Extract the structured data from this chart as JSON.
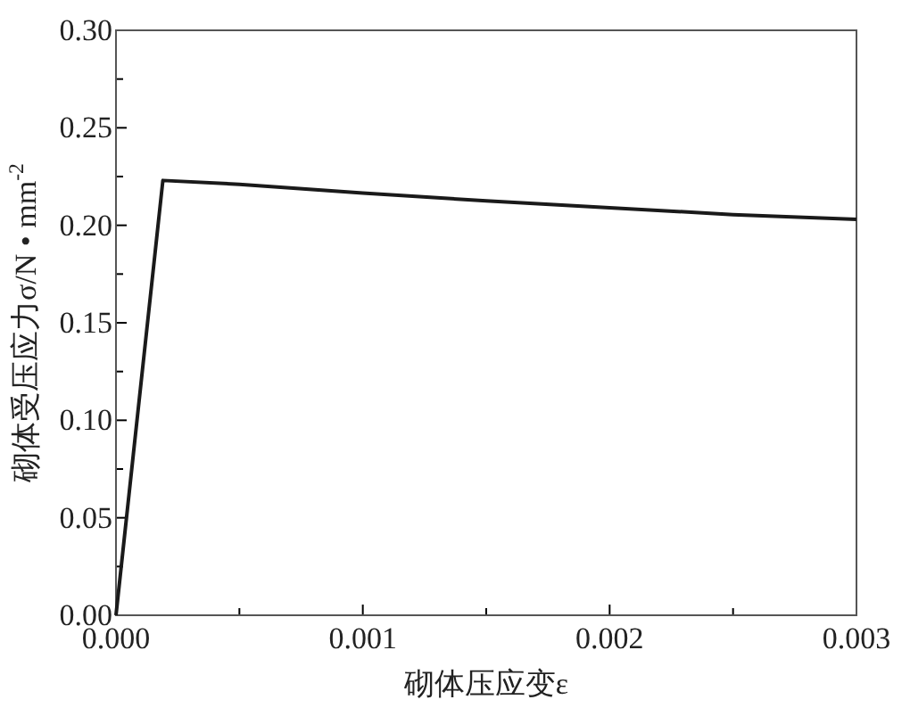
{
  "chart_data": {
    "type": "line",
    "xlabel": "砌体压应变ε",
    "ylabel": "砌体受压应力σ/N • mm$^{-2}$",
    "x": [
      0,
      0.00019,
      0.0005,
      0.001,
      0.0015,
      0.002,
      0.0025,
      0.003
    ],
    "series": [
      {
        "color": "#1a1a1a",
        "values": [
          0,
          0.223,
          0.221,
          0.2165,
          0.2125,
          0.209,
          0.2055,
          0.203
        ]
      }
    ],
    "xlim": [
      0,
      0.003
    ],
    "ylim": [
      0,
      0.3
    ],
    "xticks": [
      {
        "value": 0,
        "label": "0.000"
      },
      {
        "value": 0.0005,
        "label": null
      },
      {
        "value": 0.001,
        "label": "0.001"
      },
      {
        "value": 0.0015,
        "label": null
      },
      {
        "value": 0.002,
        "label": "0.002"
      },
      {
        "value": 0.0025,
        "label": null
      },
      {
        "value": 0.003,
        "label": "0.003"
      }
    ],
    "yticks": [
      {
        "value": 0,
        "label": "0.00"
      },
      {
        "value": 0.025,
        "label": null
      },
      {
        "value": 0.05,
        "label": "0.05"
      },
      {
        "value": 0.075,
        "label": null
      },
      {
        "value": 0.1,
        "label": "0.10"
      },
      {
        "value": 0.125,
        "label": null
      },
      {
        "value": 0.15,
        "label": "0.15"
      },
      {
        "value": 0.175,
        "label": null
      },
      {
        "value": 0.2,
        "label": "0.20"
      },
      {
        "value": 0.225,
        "label": null
      },
      {
        "value": 0.25,
        "label": "0.25"
      },
      {
        "value": 0.275,
        "label": null
      },
      {
        "value": 0.3,
        "label": "0.30"
      }
    ],
    "marker": "none",
    "line_style": "solid"
  }
}
